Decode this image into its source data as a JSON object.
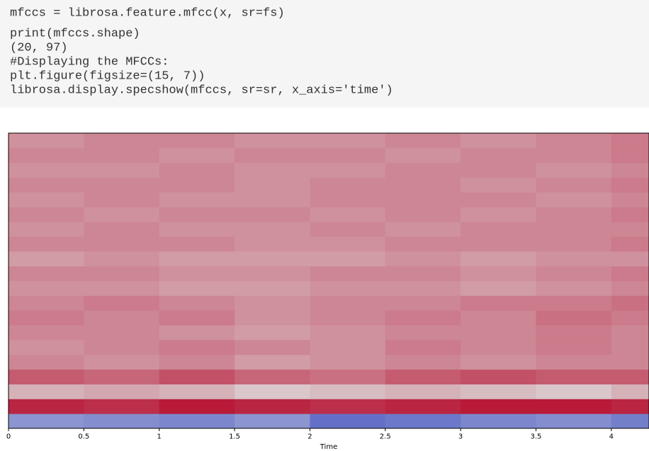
{
  "code": [
    "mfccs = librosa.feature.mfcc(x, sr=fs)",
    "print(mfccs.shape)",
    "(20, 97)",
    "#Displaying  the MFCCs:",
    "plt.figure(figsize=(15, 7))",
    "librosa.display.specshow(mfccs, sr=sr, x_axis='time')"
  ],
  "chart_data": {
    "type": "heatmap",
    "xlabel": "Time",
    "x": [
      0,
      0.5,
      1,
      1.5,
      2,
      2.5,
      3,
      3.5,
      4
    ],
    "xlim": [
      0,
      4.25
    ],
    "xticks": [
      0,
      0.5,
      1,
      1.5,
      2,
      2.5,
      3,
      3.5,
      4
    ],
    "zlim": [
      -1,
      1
    ],
    "colors": [
      "#3b4cc0",
      "#dddddd",
      "#b40426"
    ],
    "z": [
      [
        -0.5,
        -0.55,
        -0.6,
        -0.5,
        -0.75,
        -0.7,
        -0.6,
        -0.55,
        -0.65
      ],
      [
        0.85,
        0.8,
        0.9,
        0.85,
        0.8,
        0.85,
        0.9,
        0.9,
        0.85
      ],
      [
        0.2,
        0.25,
        0.2,
        0.1,
        0.15,
        0.2,
        0.15,
        0.1,
        0.2
      ],
      [
        0.6,
        0.55,
        0.65,
        0.55,
        0.5,
        0.6,
        0.65,
        0.6,
        0.6
      ],
      [
        0.4,
        0.35,
        0.4,
        0.3,
        0.35,
        0.4,
        0.35,
        0.4,
        0.4
      ],
      [
        0.35,
        0.4,
        0.45,
        0.4,
        0.35,
        0.45,
        0.4,
        0.45,
        0.4
      ],
      [
        0.4,
        0.4,
        0.35,
        0.3,
        0.35,
        0.4,
        0.4,
        0.45,
        0.4
      ],
      [
        0.45,
        0.4,
        0.45,
        0.35,
        0.4,
        0.45,
        0.4,
        0.5,
        0.45
      ],
      [
        0.4,
        0.45,
        0.4,
        0.35,
        0.4,
        0.4,
        0.45,
        0.45,
        0.5
      ],
      [
        0.35,
        0.35,
        0.3,
        0.3,
        0.35,
        0.35,
        0.3,
        0.35,
        0.4
      ],
      [
        0.4,
        0.4,
        0.35,
        0.35,
        0.4,
        0.4,
        0.35,
        0.4,
        0.45
      ],
      [
        0.3,
        0.35,
        0.3,
        0.3,
        0.3,
        0.35,
        0.3,
        0.35,
        0.35
      ],
      [
        0.4,
        0.4,
        0.4,
        0.35,
        0.35,
        0.4,
        0.4,
        0.4,
        0.45
      ],
      [
        0.35,
        0.4,
        0.35,
        0.35,
        0.4,
        0.35,
        0.4,
        0.4,
        0.4
      ],
      [
        0.4,
        0.35,
        0.4,
        0.4,
        0.35,
        0.4,
        0.35,
        0.4,
        0.45
      ],
      [
        0.35,
        0.4,
        0.35,
        0.35,
        0.4,
        0.4,
        0.4,
        0.35,
        0.4
      ],
      [
        0.4,
        0.4,
        0.4,
        0.35,
        0.4,
        0.4,
        0.35,
        0.4,
        0.45
      ],
      [
        0.35,
        0.35,
        0.4,
        0.35,
        0.35,
        0.4,
        0.4,
        0.35,
        0.4
      ],
      [
        0.4,
        0.4,
        0.35,
        0.4,
        0.4,
        0.35,
        0.4,
        0.4,
        0.45
      ],
      [
        0.35,
        0.4,
        0.4,
        0.35,
        0.35,
        0.4,
        0.35,
        0.4,
        0.45
      ]
    ]
  }
}
